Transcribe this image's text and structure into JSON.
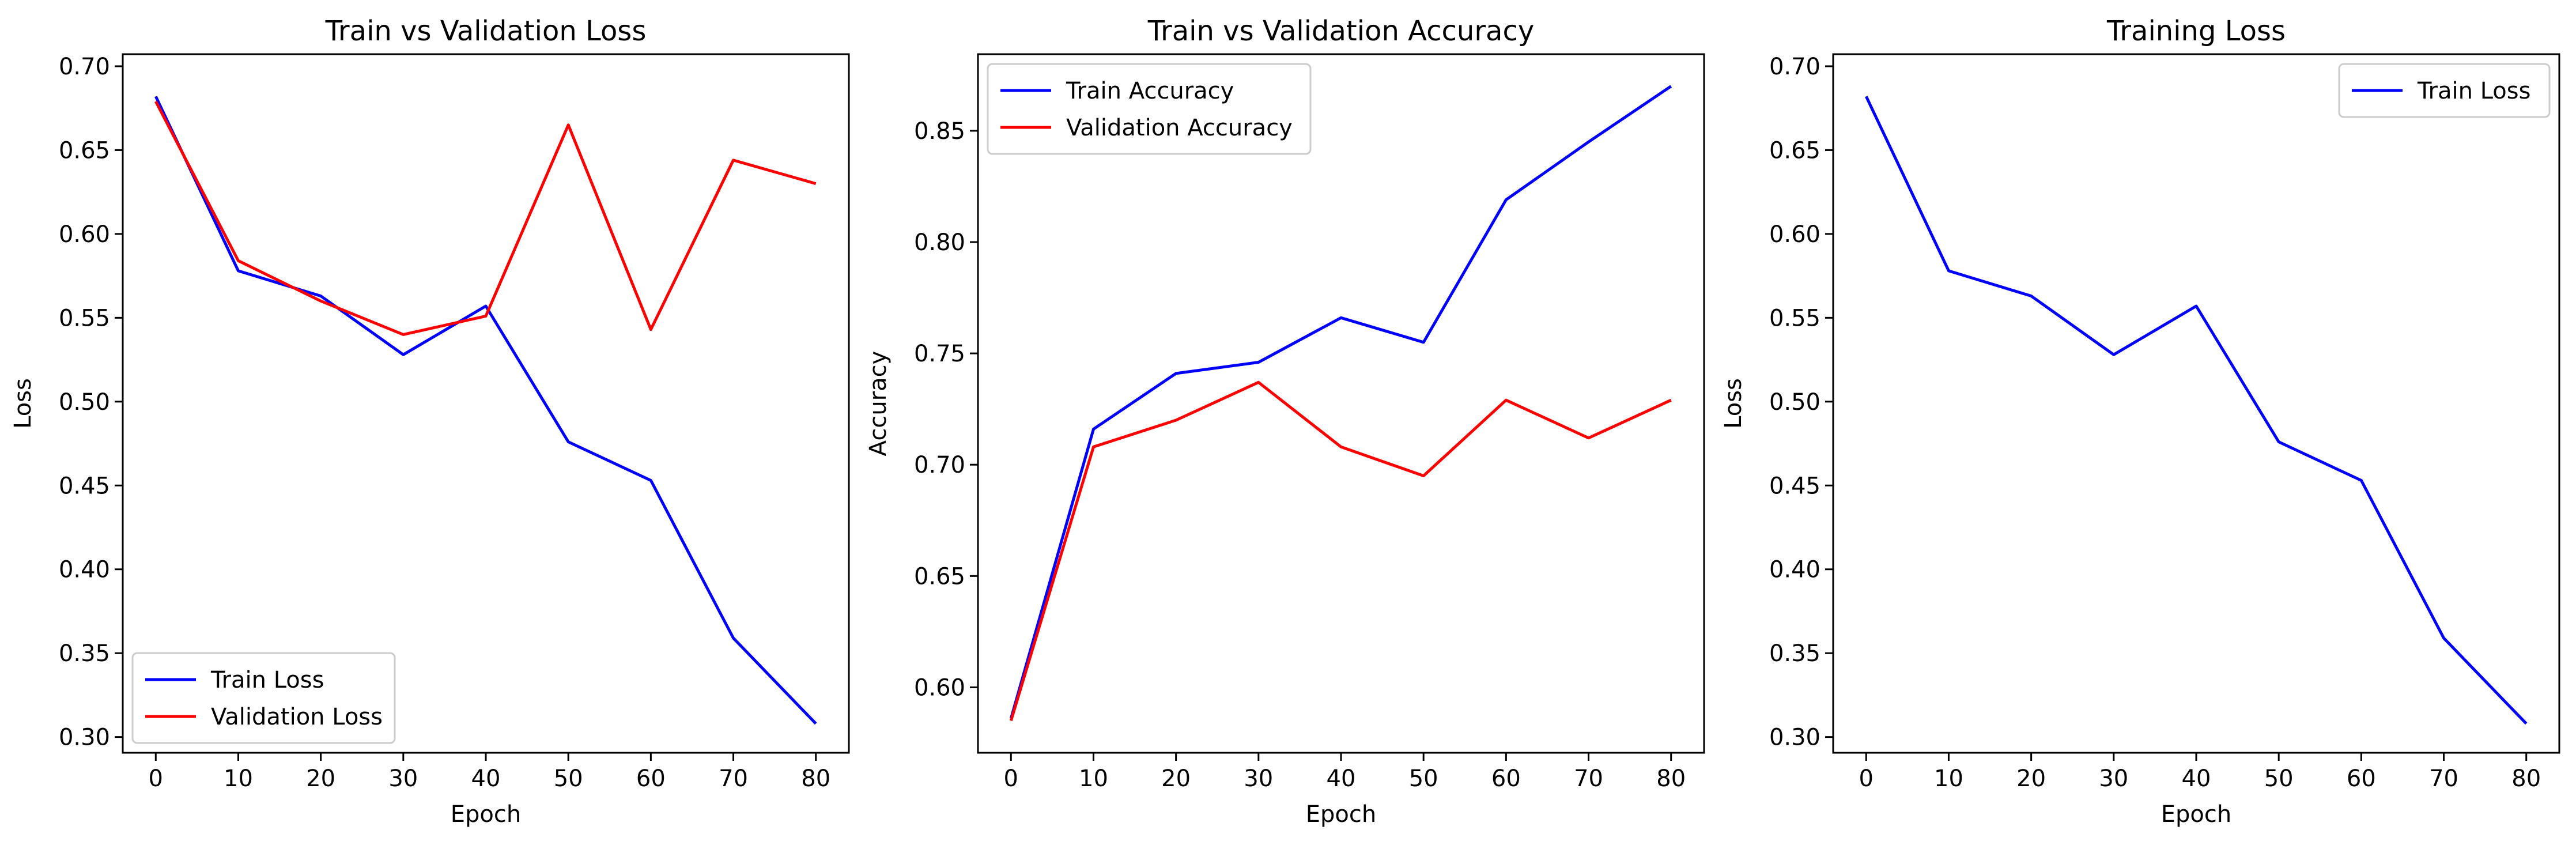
{
  "chart_data": [
    {
      "type": "line",
      "title": "Train vs Validation Loss",
      "xlabel": "Epoch",
      "ylabel": "Loss",
      "x": [
        0,
        10,
        20,
        30,
        40,
        50,
        60,
        70,
        80
      ],
      "xlim": [
        -4,
        84
      ],
      "xticks": [
        0,
        10,
        20,
        30,
        40,
        50,
        60,
        70,
        80
      ],
      "ylim": [
        0.2906,
        0.7072
      ],
      "yticks": [
        0.3,
        0.35,
        0.4,
        0.45,
        0.5,
        0.55,
        0.6,
        0.65,
        0.7
      ],
      "ytick_labels": [
        "0.30",
        "0.35",
        "0.40",
        "0.45",
        "0.50",
        "0.55",
        "0.60",
        "0.65",
        "0.70"
      ],
      "legend_position": "lower-left",
      "grid": false,
      "series": [
        {
          "name": "Train Loss",
          "color": "#0000ff",
          "values": [
            0.682,
            0.578,
            0.563,
            0.528,
            0.557,
            0.476,
            0.453,
            0.359,
            0.308
          ]
        },
        {
          "name": "Validation Loss",
          "color": "#ff0000",
          "values": [
            0.679,
            0.584,
            0.56,
            0.54,
            0.551,
            0.665,
            0.543,
            0.644,
            0.63
          ]
        }
      ]
    },
    {
      "type": "line",
      "title": "Train vs Validation Accuracy",
      "xlabel": "Epoch",
      "ylabel": "Accuracy",
      "x": [
        0,
        10,
        20,
        30,
        40,
        50,
        60,
        70,
        80
      ],
      "xlim": [
        -4,
        84
      ],
      "xticks": [
        0,
        10,
        20,
        30,
        40,
        50,
        60,
        70,
        80
      ],
      "ylim": [
        0.5706,
        0.8844
      ],
      "yticks": [
        0.6,
        0.65,
        0.7,
        0.75,
        0.8,
        0.85
      ],
      "ytick_labels": [
        "0.60",
        "0.65",
        "0.70",
        "0.75",
        "0.80",
        "0.85"
      ],
      "legend_position": "top-left",
      "grid": false,
      "series": [
        {
          "name": "Train Accuracy",
          "color": "#0000ff",
          "values": [
            0.586,
            0.716,
            0.741,
            0.746,
            0.766,
            0.755,
            0.819,
            0.845,
            0.87
          ]
        },
        {
          "name": "Validation Accuracy",
          "color": "#ff0000",
          "values": [
            0.585,
            0.708,
            0.72,
            0.737,
            0.708,
            0.695,
            0.729,
            0.712,
            0.729
          ]
        }
      ]
    },
    {
      "type": "line",
      "title": "Training Loss",
      "xlabel": "Epoch",
      "ylabel": "Loss",
      "x": [
        0,
        10,
        20,
        30,
        40,
        50,
        60,
        70,
        80
      ],
      "xlim": [
        -4,
        84
      ],
      "xticks": [
        0,
        10,
        20,
        30,
        40,
        50,
        60,
        70,
        80
      ],
      "ylim": [
        0.2906,
        0.7072
      ],
      "yticks": [
        0.3,
        0.35,
        0.4,
        0.45,
        0.5,
        0.55,
        0.6,
        0.65,
        0.7
      ],
      "ytick_labels": [
        "0.30",
        "0.35",
        "0.40",
        "0.45",
        "0.50",
        "0.55",
        "0.60",
        "0.65",
        "0.70"
      ],
      "legend_position": "top-right",
      "grid": false,
      "series": [
        {
          "name": "Train Loss",
          "color": "#0000ff",
          "values": [
            0.682,
            0.578,
            0.563,
            0.528,
            0.557,
            0.476,
            0.453,
            0.359,
            0.308
          ]
        }
      ]
    }
  ]
}
